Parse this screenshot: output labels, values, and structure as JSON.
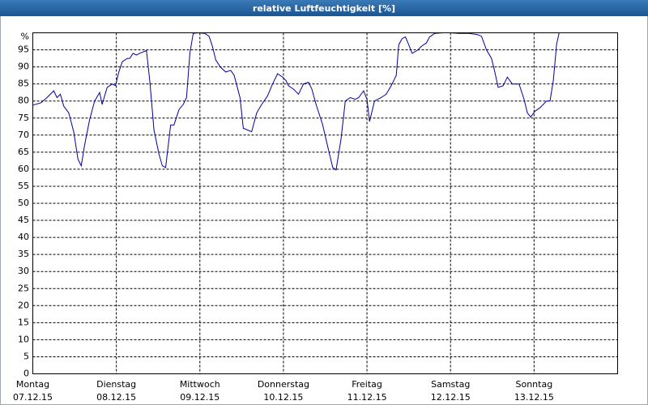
{
  "chart_data": {
    "type": "line",
    "title": "relative Luftfeuchtigkeit [%]",
    "xlim": [
      0,
      7
    ],
    "xticks": [
      {
        "value": 0,
        "label": "Montag"
      },
      {
        "value": 1,
        "label": "Dienstag"
      },
      {
        "value": 2,
        "label": "Mittwoch"
      },
      {
        "value": 3,
        "label": "Donnerstag"
      },
      {
        "value": 4,
        "label": "Freitag"
      },
      {
        "value": 5,
        "label": "Samstag"
      },
      {
        "value": 6,
        "label": "Sonntag"
      }
    ],
    "xtick_dates": [
      "07.12.15",
      "08.12.15",
      "09.12.15",
      "10.12.15",
      "11.12.15",
      "12.12.15",
      "13.12.15"
    ],
    "ylim": [
      0,
      100
    ],
    "yticks": [
      0,
      5,
      10,
      15,
      20,
      25,
      30,
      35,
      40,
      45,
      50,
      55,
      60,
      65,
      70,
      75,
      80,
      85,
      90,
      95,
      {
        "value": 100,
        "label": "%"
      }
    ],
    "grid": true,
    "series": [
      {
        "name": "relative Luftfeuchtigkeit",
        "color": "#0000a0",
        "x": [
          0,
          0.1,
          0.17,
          0.25,
          0.29,
          0.33,
          0.37,
          0.43,
          0.49,
          0.54,
          0.58,
          0.62,
          0.68,
          0.74,
          0.8,
          0.83,
          0.89,
          0.95,
          0.99,
          1.03,
          1.07,
          1.13,
          1.16,
          1.2,
          1.24,
          1.28,
          1.36,
          1.4,
          1.45,
          1.51,
          1.55,
          1.59,
          1.65,
          1.69,
          1.75,
          1.8,
          1.84,
          1.88,
          1.92,
          1.98,
          2.06,
          2.11,
          2.15,
          2.19,
          2.25,
          2.31,
          2.37,
          2.41,
          2.48,
          2.52,
          2.62,
          2.68,
          2.74,
          2.81,
          2.87,
          2.93,
          2.99,
          3.03,
          3.06,
          3.12,
          3.18,
          3.24,
          3.3,
          3.34,
          3.39,
          3.47,
          3.55,
          3.59,
          3.63,
          3.69,
          3.74,
          3.8,
          3.86,
          3.9,
          3.96,
          4.0,
          4.03,
          4.09,
          4.17,
          4.23,
          4.29,
          4.35,
          4.38,
          4.42,
          4.46,
          4.5,
          4.54,
          4.6,
          4.66,
          4.71,
          4.75,
          4.81,
          4.91,
          4.99,
          5.1,
          5.22,
          5.32,
          5.37,
          5.43,
          5.49,
          5.53,
          5.57,
          5.63,
          5.68,
          5.74,
          5.82,
          5.88,
          5.92,
          5.96,
          6.01,
          6.07,
          6.15,
          6.19,
          6.23,
          6.27,
          6.3,
          6.4,
          6.5
        ],
        "values": [
          78.8,
          79.5,
          81,
          83,
          81,
          82,
          78.5,
          76.5,
          71,
          63,
          61,
          67,
          74.5,
          80,
          82.5,
          79,
          84,
          85,
          84.5,
          88.5,
          91.5,
          92.5,
          92.5,
          94,
          93.5,
          94,
          94.8,
          86,
          71.5,
          64.5,
          61,
          60.5,
          73,
          73,
          77.5,
          79,
          81,
          94,
          99.8,
          100,
          99.8,
          99,
          96,
          92,
          89.8,
          88.5,
          89,
          87.5,
          81,
          72,
          71,
          76.5,
          79,
          81.5,
          85,
          88,
          87,
          86,
          84.5,
          83.5,
          82,
          85,
          85.5,
          83.5,
          79,
          73,
          64.5,
          60.5,
          59.8,
          69,
          80,
          81,
          80.5,
          81,
          83,
          80.5,
          74,
          80,
          81,
          82,
          84.5,
          87.5,
          96.5,
          98.3,
          98.8,
          96.5,
          94,
          94.8,
          96.2,
          97,
          98.8,
          99.8,
          100,
          100,
          99.8,
          99.8,
          99.5,
          99,
          95,
          92.5,
          88.5,
          84,
          84.5,
          87,
          85,
          85,
          80.5,
          76.5,
          75.3,
          77,
          78,
          80,
          80,
          86,
          96.7,
          100,
          100,
          100
        ]
      }
    ]
  }
}
